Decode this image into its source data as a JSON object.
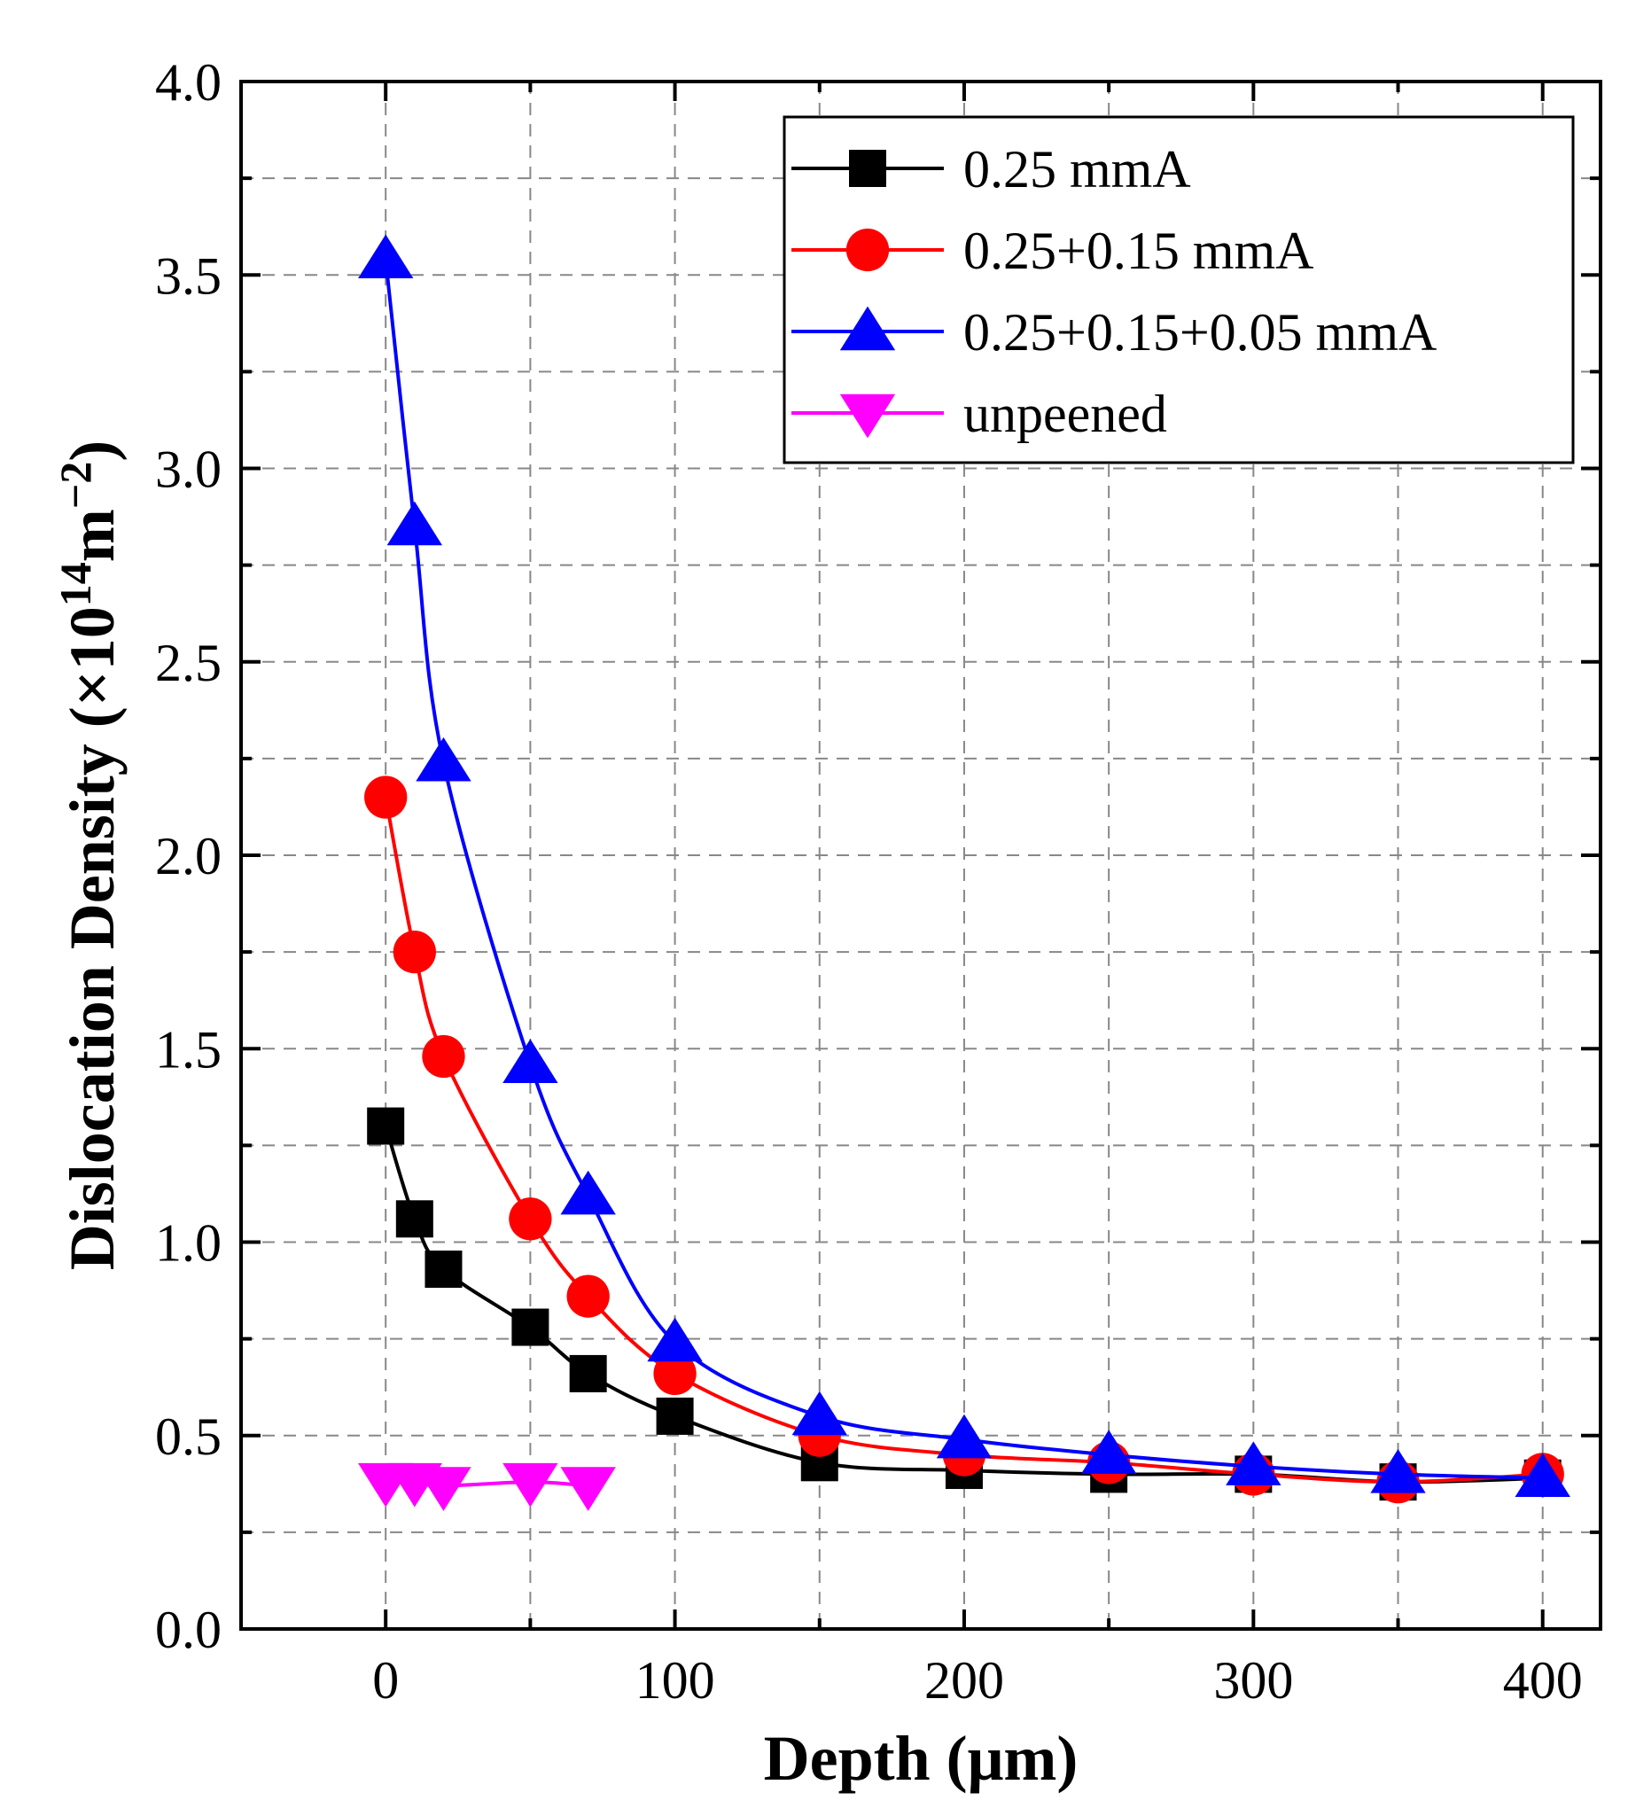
{
  "chart_data": {
    "type": "line",
    "title": "",
    "xlabel": "Depth (μm)",
    "ylabel_main": "Dislocation Density (×10",
    "ylabel_exp1": "14",
    "ylabel_unit": "m",
    "ylabel_exp2": "−2",
    "ylabel_close": ")",
    "xlim": [
      -50,
      420
    ],
    "ylim": [
      0,
      4.0
    ],
    "xticks": [
      0,
      100,
      200,
      300,
      400
    ],
    "xtick_labels": [
      "0",
      "100",
      "200",
      "300",
      "400"
    ],
    "yticks": [
      0,
      0.5,
      1.0,
      1.5,
      2.0,
      2.5,
      3.0,
      3.5,
      4.0
    ],
    "ytick_labels": [
      "0.0",
      "0.5",
      "1.0",
      "1.5",
      "2.0",
      "2.5",
      "3.0",
      "3.5",
      "4.0"
    ],
    "grid": true,
    "legend_position": "top-right",
    "series": [
      {
        "name": "0.25 mmA",
        "color": "#000000",
        "marker": "square",
        "x": [
          0,
          10,
          20,
          50,
          70,
          100,
          150,
          200,
          250,
          300,
          350,
          400
        ],
        "y": [
          1.3,
          1.06,
          0.93,
          0.78,
          0.66,
          0.55,
          0.43,
          0.41,
          0.4,
          0.4,
          0.38,
          0.39
        ]
      },
      {
        "name": "0.25+0.15 mmA",
        "color": "#ff0000",
        "marker": "circle",
        "x": [
          0,
          10,
          20,
          50,
          70,
          100,
          150,
          200,
          250,
          300,
          350,
          400
        ],
        "y": [
          2.15,
          1.75,
          1.48,
          1.06,
          0.86,
          0.66,
          0.5,
          0.45,
          0.43,
          0.4,
          0.38,
          0.4
        ]
      },
      {
        "name": "0.25+0.15+0.05 mmA",
        "color": "#0000ff",
        "marker": "triangle-up",
        "x": [
          0,
          10,
          20,
          50,
          70,
          100,
          150,
          200,
          250,
          300,
          350,
          400
        ],
        "y": [
          3.54,
          2.85,
          2.24,
          1.46,
          1.12,
          0.74,
          0.55,
          0.49,
          0.45,
          0.42,
          0.4,
          0.39
        ]
      },
      {
        "name": "unpeened",
        "color": "#ff00ff",
        "marker": "triangle-down",
        "x": [
          0,
          10,
          20,
          50,
          70
        ],
        "y": [
          0.38,
          0.38,
          0.37,
          0.38,
          0.37
        ]
      }
    ]
  }
}
